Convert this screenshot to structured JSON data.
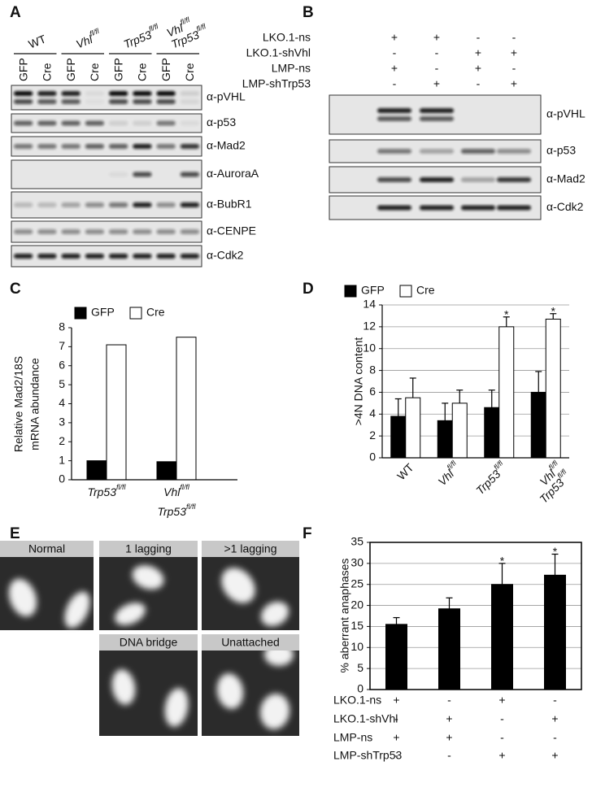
{
  "panel_labels": [
    "A",
    "B",
    "C",
    "D",
    "E",
    "F"
  ],
  "blot_a": {
    "genotypes": [
      [
        {
          "gene": "WT"
        }
      ],
      [
        {
          "gene": "Vhl",
          "allele": "fl/fl"
        }
      ],
      [
        {
          "gene": "Trp53",
          "allele": "fl/fl"
        }
      ],
      [
        {
          "gene": "Vhl",
          "allele": "fl/fl"
        },
        {
          "gene": "Trp53",
          "allele": "fl/fl"
        }
      ]
    ],
    "lanes": [
      "GFP",
      "Cre",
      "GFP",
      "Cre",
      "GFP",
      "Cre",
      "GFP",
      "Cre"
    ],
    "antibodies": [
      "α-pVHL",
      "α-p53",
      "α-Mad2",
      "α-AuroraA",
      "α-BubR1",
      "α-CENPE",
      "α-Cdk2"
    ]
  },
  "blot_b": {
    "conditions": [
      {
        "label": "LKO.1-ns",
        "marks": [
          "+",
          "+",
          "-",
          "-"
        ]
      },
      {
        "label": "LKO.1-shVhl",
        "marks": [
          "-",
          "-",
          "+",
          "+"
        ]
      },
      {
        "label": "LMP-ns",
        "marks": [
          "+",
          "-",
          "+",
          "-"
        ]
      },
      {
        "label": "LMP-shTrp53",
        "marks": [
          "-",
          "+",
          "-",
          "+"
        ]
      }
    ],
    "antibodies": [
      "α-pVHL",
      "α-p53",
      "α-Mad2",
      "α-Cdk2"
    ]
  },
  "micrographs": [
    "Normal",
    "1 lagging",
    ">1 lagging",
    "DNA bridge",
    "Unattached"
  ],
  "chart_data": [
    {
      "type": "bar",
      "ylabel": [
        "Relative Mad2/18S",
        "mRNA abundance"
      ],
      "categories": [
        [
          {
            "gene": "Trp53",
            "allele": "fl/fl"
          }
        ],
        [
          {
            "gene": "Vhl",
            "allele": "fl/fl"
          },
          {
            "gene": "Trp53",
            "allele": "fl/fl"
          }
        ]
      ],
      "series": [
        {
          "name": "GFP",
          "color": "#000000",
          "values": [
            1,
            0.95
          ]
        },
        {
          "name": "Cre",
          "color": "#ffffff",
          "values": [
            7.1,
            7.5
          ]
        }
      ],
      "ylim": [
        0,
        8
      ],
      "yticks": [
        0,
        1,
        2,
        3,
        4,
        5,
        6,
        7,
        8
      ],
      "grid": false
    },
    {
      "type": "bar",
      "ylabel": ">4N DNA content",
      "categories": [
        [
          {
            "gene": "WT"
          }
        ],
        [
          {
            "gene": "Vhl",
            "allele": "fl/fl"
          }
        ],
        [
          {
            "gene": "Trp53",
            "allele": "fl/fl"
          }
        ],
        [
          {
            "gene": "Vhl",
            "allele": "fl/fl"
          },
          {
            "gene": "Trp53",
            "allele": "fl/fl"
          }
        ]
      ],
      "series": [
        {
          "name": "GFP",
          "color": "#000000",
          "values": [
            3.8,
            3.4,
            4.6,
            6.0
          ],
          "errors": [
            1.6,
            1.6,
            1.6,
            1.9
          ]
        },
        {
          "name": "Cre",
          "color": "#ffffff",
          "values": [
            5.5,
            5.0,
            12.0,
            12.7
          ],
          "errors": [
            1.8,
            1.2,
            0.9,
            0.5
          ],
          "annotations": [
            null,
            null,
            "*",
            "*"
          ]
        }
      ],
      "ylim": [
        0,
        14
      ],
      "yticks": [
        0,
        2,
        4,
        6,
        8,
        10,
        12,
        14
      ],
      "grid": true
    },
    {
      "type": "bar",
      "ylabel": "% aberrant anaphases",
      "color": "#000000",
      "values": [
        15.5,
        19.2,
        25.0,
        27.2
      ],
      "errors": [
        1.6,
        2.6,
        5.0,
        5.0
      ],
      "annotations": [
        null,
        null,
        "*",
        "*"
      ],
      "conditions": [
        {
          "label": "LKO.1-ns",
          "marks": [
            "+",
            "-",
            "+",
            "-"
          ]
        },
        {
          "label": "LKO.1-shVhl",
          "marks": [
            "-",
            "+",
            "-",
            "+"
          ]
        },
        {
          "label": "LMP-ns",
          "marks": [
            "+",
            "+",
            "-",
            "-"
          ]
        },
        {
          "label": "LMP-shTrp53",
          "marks": [
            "-",
            "-",
            "+",
            "+"
          ]
        }
      ],
      "ylim": [
        0,
        35
      ],
      "yticks": [
        0,
        5,
        10,
        15,
        20,
        25,
        30,
        35
      ],
      "grid": true
    }
  ]
}
